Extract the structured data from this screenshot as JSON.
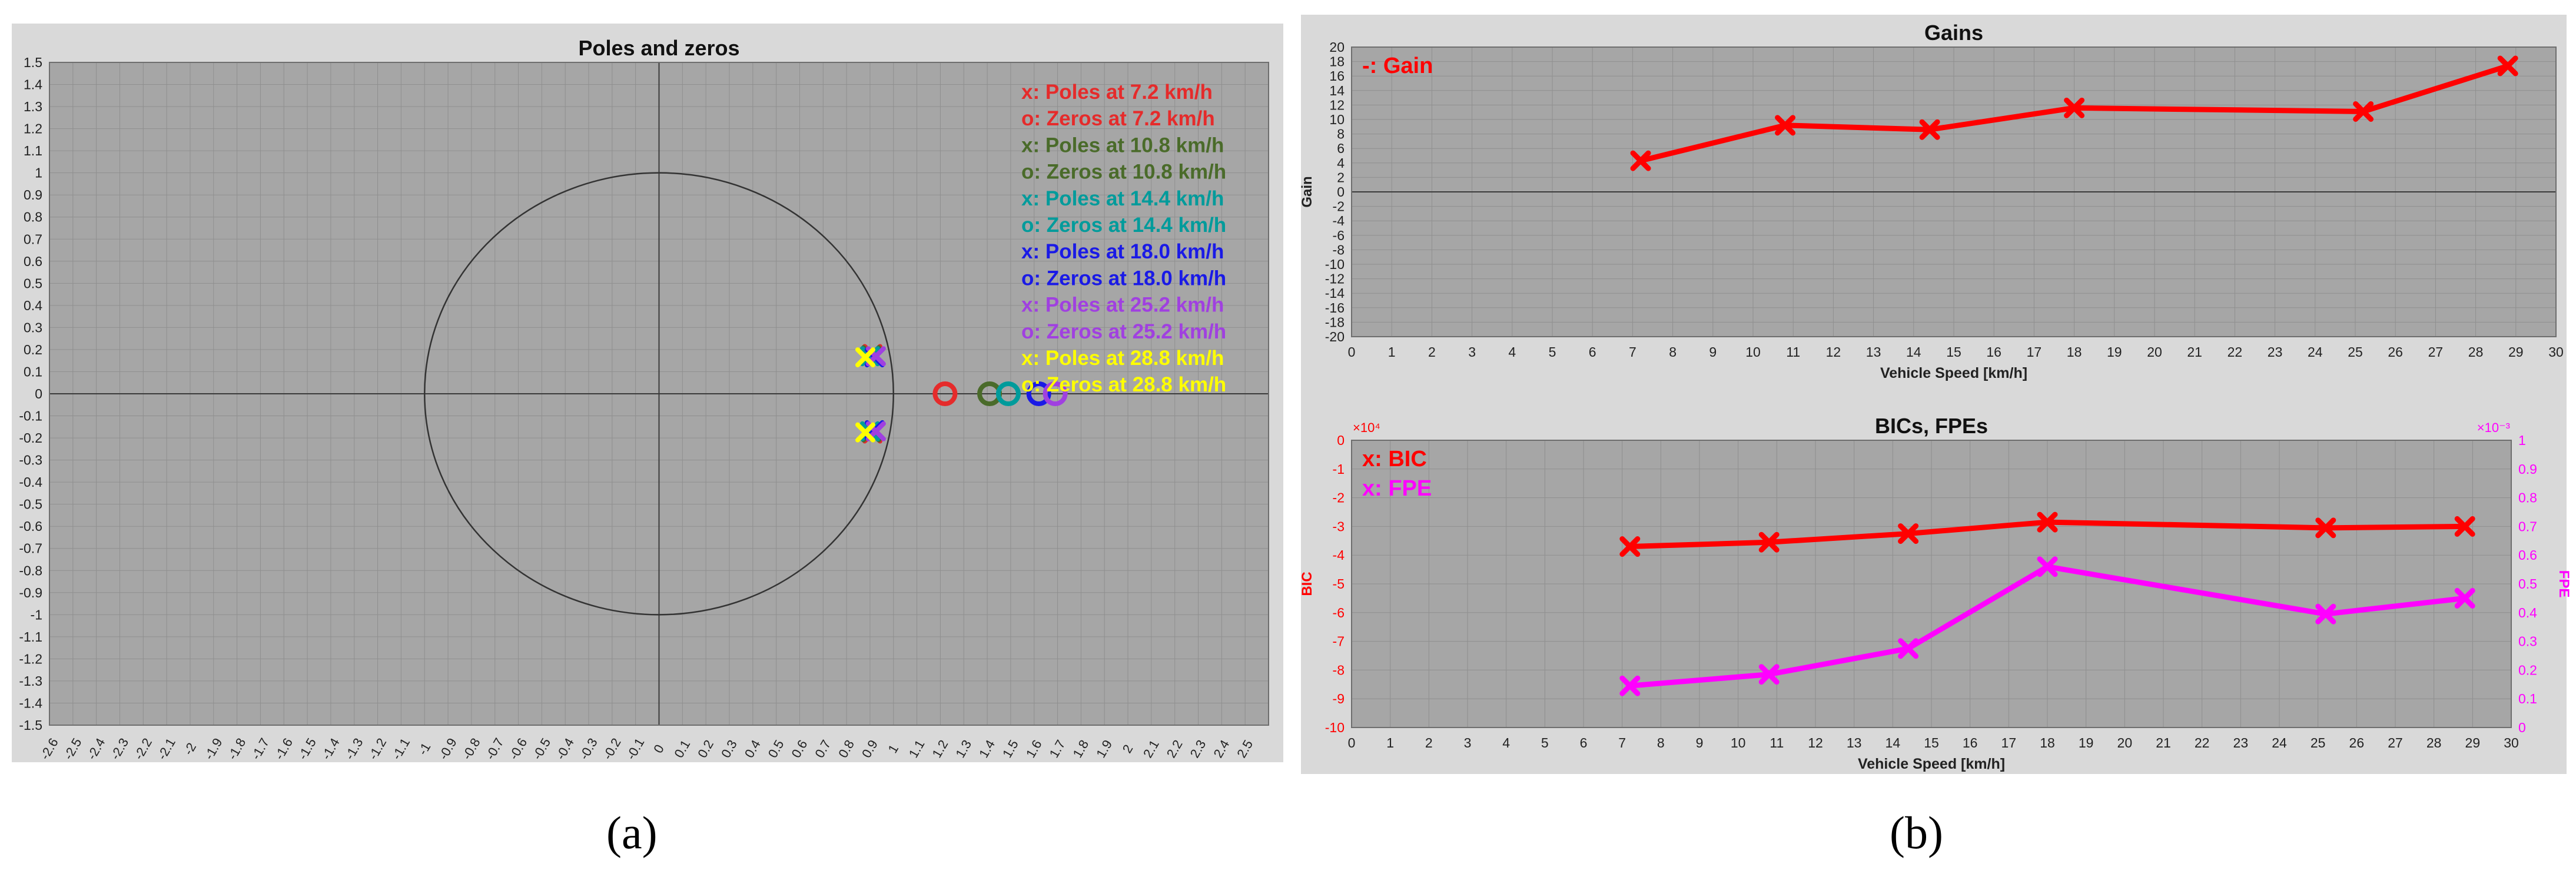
{
  "colors": {
    "figure_bg": "#d9d9d9",
    "axes_bg": "#a6a6a6",
    "grid": "#8f8f8f",
    "zero_line": "#3a3a3a",
    "unit_circle": "#333333",
    "red": "#ff0000",
    "magenta": "#ff00ff"
  },
  "panel_labels": {
    "a": "(a)",
    "b": "(b)"
  },
  "chart_data": [
    {
      "type": "scatter",
      "title": "Poles and zeros",
      "xlim": [
        -2.6,
        2.6
      ],
      "ylim": [
        -1.5,
        1.5
      ],
      "xticks": [
        "-2.6",
        "-2.5",
        "-2.4",
        "-2.3",
        "-2.2",
        "-2.1",
        "-2",
        "-1.9",
        "-1.8",
        "-1.7",
        "-1.6",
        "-1.5",
        "-1.4",
        "-1.3",
        "-1.2",
        "-1.1",
        "-1",
        "-0.9",
        "-0.8",
        "-0.7",
        "-0.6",
        "-0.5",
        "-0.4",
        "-0.3",
        "-0.2",
        "-0.1",
        "0",
        "0.1",
        "0.2",
        "0.3",
        "0.4",
        "0.5",
        "0.6",
        "0.7",
        "0.8",
        "0.9",
        "1",
        "1.1",
        "1.2",
        "1.3",
        "1.4",
        "1.5",
        "1.6",
        "1.7",
        "1.8",
        "1.9",
        "2",
        "2.1",
        "2.2",
        "2.3",
        "2.4",
        "2.5"
      ],
      "yticks": [
        "1.5",
        "1.4",
        "1.3",
        "1.2",
        "1.1",
        "1",
        "0.9",
        "0.8",
        "0.7",
        "0.6",
        "0.5",
        "0.4",
        "0.3",
        "0.2",
        "0.1",
        "0",
        "-0.1",
        "-0.2",
        "-0.3",
        "-0.4",
        "-0.5",
        "-0.6",
        "-0.7",
        "-0.8",
        "-0.9",
        "-1",
        "-1.1",
        "-1.2",
        "-1.3",
        "-1.4",
        "-1.5"
      ],
      "grid": true,
      "legend_position": "top-right",
      "unit_circle": true,
      "series": [
        {
          "name": "x: Poles at  7.2 km/h",
          "marker": "x",
          "color": "#e52b2b",
          "points": [
            [
              0.91,
              0.18
            ],
            [
              0.91,
              -0.18
            ]
          ]
        },
        {
          "name": "o: Zeros at  7.2 km/h",
          "marker": "o",
          "color": "#e52b2b",
          "points": [
            [
              1.22,
              0.0
            ]
          ]
        },
        {
          "name": "x: Poles at 10.8 km/h",
          "marker": "x",
          "color": "#4a6b2a",
          "points": [
            [
              0.905,
              0.175
            ],
            [
              0.905,
              -0.175
            ]
          ]
        },
        {
          "name": "o: Zeros at 10.8 km/h",
          "marker": "o",
          "color": "#4a6b2a",
          "points": [
            [
              1.41,
              0.0
            ]
          ]
        },
        {
          "name": "x: Poles at 14.4 km/h",
          "marker": "x",
          "color": "#009b9b",
          "points": [
            [
              0.9,
              0.17
            ],
            [
              0.9,
              -0.17
            ]
          ]
        },
        {
          "name": "o: Zeros at 14.4 km/h",
          "marker": "o",
          "color": "#009b9b",
          "points": [
            [
              1.49,
              0.0
            ]
          ]
        },
        {
          "name": "x: Poles at 18.0 km/h",
          "marker": "x",
          "color": "#1a1ae6",
          "points": [
            [
              0.92,
              0.165
            ],
            [
              0.92,
              -0.165
            ]
          ]
        },
        {
          "name": "o: Zeros at 18.0 km/h",
          "marker": "o",
          "color": "#1a1ae6",
          "points": [
            [
              1.62,
              0.0
            ]
          ]
        },
        {
          "name": "x: Poles at 25.2 km/h",
          "marker": "x",
          "color": "#a040e0",
          "points": [
            [
              0.925,
              0.17
            ],
            [
              0.925,
              -0.17
            ]
          ]
        },
        {
          "name": "o: Zeros at 25.2 km/h",
          "marker": "o",
          "color": "#a040e0",
          "points": [
            [
              1.69,
              0.0
            ]
          ]
        },
        {
          "name": "x: Poles at 28.8 km/h",
          "marker": "x",
          "color": "#ffff00",
          "points": [
            [
              0.88,
              0.165
            ],
            [
              0.88,
              -0.175
            ]
          ]
        },
        {
          "name": "o: Zeros at 28.8 km/h",
          "marker": "o",
          "color": "#ffff00",
          "points": []
        }
      ]
    },
    {
      "type": "line",
      "title": "Gains",
      "xlabel": "Vehicle Speed [km/h]",
      "ylabel": "Gain",
      "xlim": [
        0,
        30
      ],
      "ylim": [
        -20,
        20
      ],
      "xticks": [
        0,
        1,
        2,
        3,
        4,
        5,
        6,
        7,
        8,
        9,
        10,
        11,
        12,
        13,
        14,
        15,
        16,
        17,
        18,
        19,
        20,
        21,
        22,
        23,
        24,
        25,
        26,
        27,
        28,
        29,
        30
      ],
      "yticks": [
        20,
        18,
        16,
        14,
        12,
        10,
        8,
        6,
        4,
        2,
        0,
        -2,
        -4,
        -6,
        -8,
        -10,
        -12,
        -14,
        -16,
        -18,
        -20
      ],
      "grid": true,
      "legend_position": "top-left",
      "series": [
        {
          "name": "-: Gain",
          "color": "#ff0000",
          "marker": "x",
          "x": [
            7.2,
            10.8,
            14.4,
            18.0,
            25.2,
            28.8
          ],
          "y": [
            4.3,
            9.2,
            8.6,
            11.6,
            11.1,
            17.4
          ]
        }
      ]
    },
    {
      "type": "line",
      "title": "BICs, FPEs",
      "xlabel": "Vehicle Speed [km/h]",
      "ylabel": "BIC",
      "ylabel_right": "FPE",
      "y_exponent_left": "×10⁴",
      "y_exponent_right": "×10⁻³",
      "xlim": [
        0,
        30
      ],
      "ylim": [
        -10,
        0
      ],
      "ylim_right": [
        0,
        1
      ],
      "xticks": [
        0,
        1,
        2,
        3,
        4,
        5,
        6,
        7,
        8,
        9,
        10,
        11,
        12,
        13,
        14,
        15,
        16,
        17,
        18,
        19,
        20,
        21,
        22,
        23,
        24,
        25,
        26,
        27,
        28,
        29,
        30
      ],
      "yticks": [
        0,
        -1,
        -2,
        -3,
        -4,
        -5,
        -6,
        -7,
        -8,
        -9,
        -10
      ],
      "yticks_right": [
        "1",
        "0.9",
        "0.8",
        "0.7",
        "0.6",
        "0.5",
        "0.4",
        "0.3",
        "0.2",
        "0.1",
        "0"
      ],
      "grid": true,
      "legend_position": "top-left",
      "series": [
        {
          "name": "x: BIC",
          "axis": "left",
          "color": "#ff0000",
          "marker": "x",
          "x": [
            7.2,
            10.8,
            14.4,
            18.0,
            25.2,
            28.8
          ],
          "y": [
            -3.7,
            -3.55,
            -3.25,
            -2.85,
            -3.05,
            -3.0
          ]
        },
        {
          "name": "x: FPE",
          "axis": "right",
          "color": "#ff00ff",
          "marker": "x",
          "x": [
            7.2,
            10.8,
            14.4,
            18.0,
            25.2,
            28.8
          ],
          "y": [
            0.145,
            0.185,
            0.275,
            0.56,
            0.395,
            0.45
          ]
        }
      ]
    }
  ]
}
